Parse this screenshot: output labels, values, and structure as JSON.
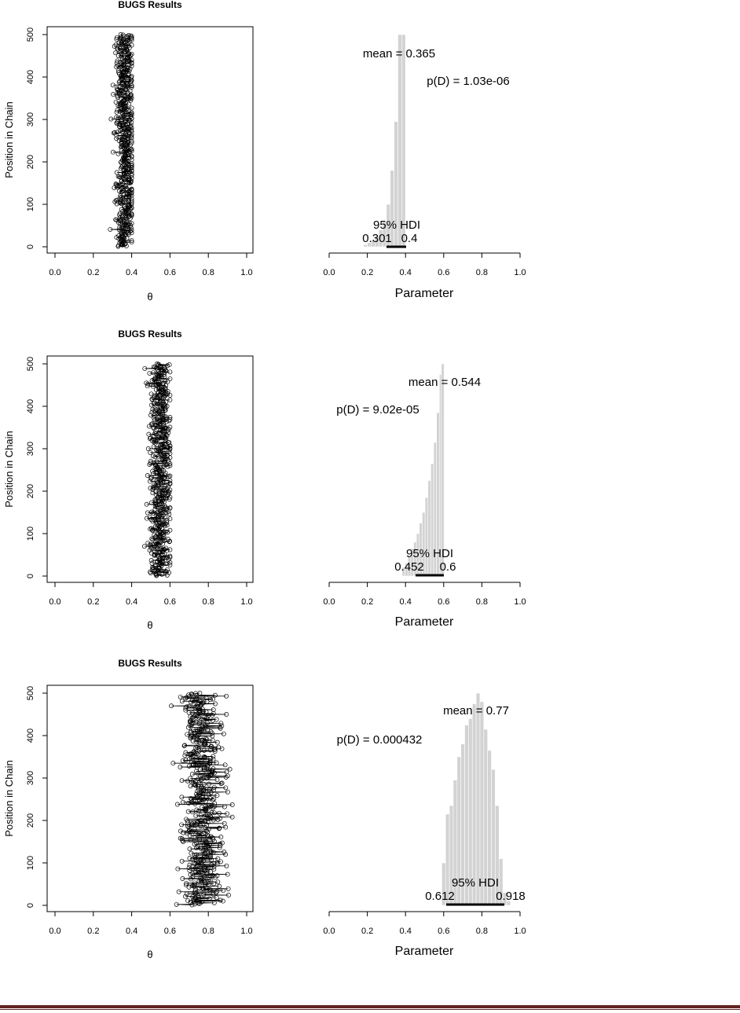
{
  "chart_data": [
    {
      "type": "scatter",
      "title": "BUGS Results",
      "xlabel": "θ",
      "ylabel": "Position in Chain",
      "xlim": [
        0,
        1
      ],
      "ylim": [
        0,
        500
      ],
      "xticks": [
        "0.0",
        "0.2",
        "0.4",
        "0.6",
        "0.8",
        "1.0"
      ],
      "yticks": [
        "0",
        "100",
        "200",
        "300",
        "400",
        "500"
      ],
      "chain": {
        "n": 500,
        "center": 0.365,
        "spread": 0.035,
        "min": 0.22,
        "max": 0.4,
        "seed": 11
      }
    },
    {
      "type": "bar",
      "xlabel": "Parameter",
      "xlim": [
        0,
        1
      ],
      "xticks": [
        "0.0",
        "0.2",
        "0.4",
        "0.6",
        "0.8",
        "1.0"
      ],
      "mean_label": "mean = 0.365",
      "pd_label": "p(D) = 1.03e-06",
      "hdi_label": "95% HDI",
      "hdi_low_label": "0.301",
      "hdi_high_label": "0.4",
      "hdi": [
        0.301,
        0.4
      ],
      "bins": [
        0.19,
        0.21,
        0.23,
        0.25,
        0.27,
        0.29,
        0.31,
        0.33,
        0.35,
        0.37,
        0.39
      ],
      "values": [
        0.01,
        0.02,
        0.03,
        0.05,
        0.08,
        0.12,
        0.2,
        0.36,
        0.59,
        1.0,
        1.0
      ]
    },
    {
      "type": "scatter",
      "title": "BUGS Results",
      "xlabel": "θ",
      "ylabel": "Position in Chain",
      "xlim": [
        0,
        1
      ],
      "ylim": [
        0,
        500
      ],
      "xticks": [
        "0.0",
        "0.2",
        "0.4",
        "0.6",
        "0.8",
        "1.0"
      ],
      "yticks": [
        "0",
        "100",
        "200",
        "300",
        "400",
        "500"
      ],
      "chain": {
        "n": 500,
        "center": 0.55,
        "spread": 0.04,
        "min": 0.4,
        "max": 0.6,
        "seed": 23
      }
    },
    {
      "type": "bar",
      "xlabel": "Parameter",
      "xlim": [
        0,
        1
      ],
      "xticks": [
        "0.0",
        "0.2",
        "0.4",
        "0.6",
        "0.8",
        "1.0"
      ],
      "mean_label": "mean = 0.544",
      "pd_label": "p(D) = 9.02e-05",
      "hdi_label": "95% HDI",
      "hdi_low_label": "0.452",
      "hdi_high_label": "0.6",
      "hdi": [
        0.452,
        0.6
      ],
      "bins": [
        0.39,
        0.405,
        0.42,
        0.435,
        0.45,
        0.465,
        0.48,
        0.495,
        0.51,
        0.525,
        0.54,
        0.555,
        0.57,
        0.585,
        0.595
      ],
      "values": [
        0.04,
        0.06,
        0.09,
        0.13,
        0.16,
        0.2,
        0.25,
        0.3,
        0.37,
        0.45,
        0.53,
        0.63,
        0.77,
        0.95,
        1.0
      ]
    },
    {
      "type": "scatter",
      "title": "BUGS Results",
      "xlabel": "θ",
      "ylabel": "Position in Chain",
      "xlim": [
        0,
        1
      ],
      "ylim": [
        0,
        500
      ],
      "xticks": [
        "0.0",
        "0.2",
        "0.4",
        "0.6",
        "0.8",
        "1.0"
      ],
      "yticks": [
        "0",
        "100",
        "200",
        "300",
        "400",
        "500"
      ],
      "chain": {
        "n": 500,
        "center": 0.77,
        "spread": 0.075,
        "min": 0.6,
        "max": 0.97,
        "seed": 37
      }
    },
    {
      "type": "bar",
      "xlabel": "Parameter",
      "xlim": [
        0,
        1
      ],
      "xticks": [
        "0.0",
        "0.2",
        "0.4",
        "0.6",
        "0.8",
        "1.0"
      ],
      "mean_label": "mean = 0.77",
      "pd_label": "p(D) = 0.000432",
      "hdi_label": "95% HDI",
      "hdi_low_label": "0.612",
      "hdi_high_label": "0.918",
      "hdi": [
        0.612,
        0.918
      ],
      "bins": [
        0.6,
        0.62,
        0.64,
        0.66,
        0.68,
        0.7,
        0.72,
        0.74,
        0.76,
        0.78,
        0.8,
        0.82,
        0.84,
        0.86,
        0.88,
        0.9,
        0.92,
        0.94
      ],
      "values": [
        0.2,
        0.43,
        0.47,
        0.59,
        0.7,
        0.76,
        0.85,
        0.88,
        0.95,
        1.0,
        0.96,
        0.83,
        0.73,
        0.64,
        0.47,
        0.22,
        0.06,
        0.02
      ]
    }
  ]
}
